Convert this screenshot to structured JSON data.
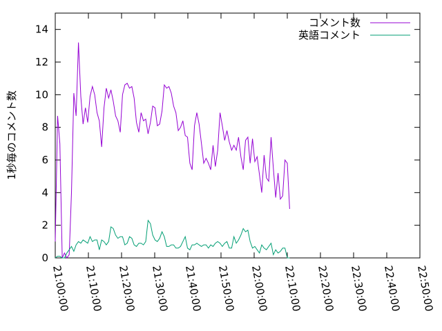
{
  "chart_data": {
    "type": "line",
    "title": "",
    "xlabel": "",
    "ylabel": "1秒毎のコメント数",
    "xlim": [
      "21:00:00",
      "22:50:00"
    ],
    "ylim": [
      0,
      15
    ],
    "x_ticks": [
      "21:00:00",
      "21:10:00",
      "21:20:00",
      "21:30:00",
      "21:40:00",
      "21:50:00",
      "22:00:00",
      "22:10:00",
      "22:20:00",
      "22:30:00",
      "22:40:00",
      "22:50:00"
    ],
    "y_ticks": [
      0,
      2,
      4,
      6,
      8,
      10,
      12,
      14
    ],
    "grid": false,
    "legend": "top-right",
    "series": [
      {
        "name": "コメント数",
        "color": "#9400d3",
        "points": [
          [
            "21:00:00",
            1.0
          ],
          [
            "21:00:42",
            8.7
          ],
          [
            "21:01:24",
            7.0
          ],
          [
            "21:02:06",
            0.0
          ],
          [
            "21:02:48",
            0.3
          ],
          [
            "21:03:30",
            0.0
          ],
          [
            "21:04:12",
            0.2
          ],
          [
            "21:04:54",
            4.0
          ],
          [
            "21:05:36",
            10.1
          ],
          [
            "21:06:18",
            8.7
          ],
          [
            "21:07:00",
            13.2
          ],
          [
            "21:07:42",
            9.9
          ],
          [
            "21:08:24",
            8.2
          ],
          [
            "21:09:06",
            9.2
          ],
          [
            "21:09:48",
            8.3
          ],
          [
            "21:10:30",
            9.9
          ],
          [
            "21:11:12",
            10.5
          ],
          [
            "21:11:54",
            10.0
          ],
          [
            "21:12:36",
            8.9
          ],
          [
            "21:13:18",
            8.4
          ],
          [
            "21:14:00",
            6.8
          ],
          [
            "21:14:42",
            9.2
          ],
          [
            "21:15:24",
            10.4
          ],
          [
            "21:16:06",
            9.8
          ],
          [
            "21:16:48",
            10.3
          ],
          [
            "21:17:30",
            9.6
          ],
          [
            "21:18:12",
            8.7
          ],
          [
            "21:18:54",
            8.4
          ],
          [
            "21:19:36",
            7.7
          ],
          [
            "21:20:18",
            10.0
          ],
          [
            "21:21:00",
            10.6
          ],
          [
            "21:21:42",
            10.7
          ],
          [
            "21:22:24",
            10.4
          ],
          [
            "21:23:06",
            10.5
          ],
          [
            "21:23:48",
            9.8
          ],
          [
            "21:24:30",
            8.3
          ],
          [
            "21:25:12",
            7.7
          ],
          [
            "21:25:54",
            8.9
          ],
          [
            "21:26:36",
            8.4
          ],
          [
            "21:27:18",
            8.5
          ],
          [
            "21:28:00",
            7.6
          ],
          [
            "21:28:42",
            8.3
          ],
          [
            "21:29:24",
            9.3
          ],
          [
            "21:30:06",
            9.2
          ],
          [
            "21:30:48",
            8.1
          ],
          [
            "21:31:30",
            8.2
          ],
          [
            "21:32:12",
            9.0
          ],
          [
            "21:32:54",
            10.6
          ],
          [
            "21:33:36",
            10.4
          ],
          [
            "21:34:18",
            10.5
          ],
          [
            "21:35:00",
            10.1
          ],
          [
            "21:35:42",
            9.3
          ],
          [
            "21:36:24",
            8.9
          ],
          [
            "21:37:06",
            7.8
          ],
          [
            "21:37:48",
            8.0
          ],
          [
            "21:38:30",
            8.4
          ],
          [
            "21:39:12",
            7.5
          ],
          [
            "21:39:54",
            7.4
          ],
          [
            "21:40:36",
            5.8
          ],
          [
            "21:41:18",
            5.4
          ],
          [
            "21:42:00",
            8.1
          ],
          [
            "21:42:42",
            8.9
          ],
          [
            "21:43:24",
            8.2
          ],
          [
            "21:44:06",
            7.0
          ],
          [
            "21:44:48",
            5.8
          ],
          [
            "21:45:30",
            6.1
          ],
          [
            "21:46:12",
            5.8
          ],
          [
            "21:46:54",
            5.4
          ],
          [
            "21:47:36",
            6.9
          ],
          [
            "21:48:18",
            5.6
          ],
          [
            "21:49:00",
            6.6
          ],
          [
            "21:49:42",
            8.9
          ],
          [
            "21:50:24",
            8.1
          ],
          [
            "21:51:06",
            7.2
          ],
          [
            "21:51:48",
            7.8
          ],
          [
            "21:52:30",
            7.1
          ],
          [
            "21:53:12",
            6.6
          ],
          [
            "21:53:54",
            6.9
          ],
          [
            "21:54:36",
            6.6
          ],
          [
            "21:55:18",
            7.4
          ],
          [
            "21:56:00",
            6.2
          ],
          [
            "21:56:42",
            5.4
          ],
          [
            "21:57:24",
            7.2
          ],
          [
            "21:58:06",
            7.4
          ],
          [
            "21:58:48",
            5.8
          ],
          [
            "21:59:30",
            7.3
          ],
          [
            "22:00:12",
            5.9
          ],
          [
            "22:00:54",
            6.2
          ],
          [
            "22:01:36",
            5.1
          ],
          [
            "22:02:18",
            4.0
          ],
          [
            "22:03:00",
            6.3
          ],
          [
            "22:03:42",
            4.9
          ],
          [
            "22:04:24",
            4.7
          ],
          [
            "22:05:06",
            7.4
          ],
          [
            "22:05:48",
            5.5
          ],
          [
            "22:06:30",
            3.7
          ],
          [
            "22:07:12",
            5.2
          ],
          [
            "22:07:54",
            3.6
          ],
          [
            "22:08:36",
            3.8
          ],
          [
            "22:09:18",
            6.0
          ],
          [
            "22:10:00",
            5.8
          ],
          [
            "22:10:42",
            3.0
          ]
        ]
      },
      {
        "name": "英語コメント",
        "color": "#009e73",
        "points": [
          [
            "21:00:00",
            0.0
          ],
          [
            "21:00:42",
            0.1
          ],
          [
            "21:01:24",
            0.1
          ],
          [
            "21:02:06",
            0.0
          ],
          [
            "21:02:48",
            0.0
          ],
          [
            "21:03:30",
            0.3
          ],
          [
            "21:04:12",
            0.5
          ],
          [
            "21:04:54",
            0.7
          ],
          [
            "21:05:36",
            0.4
          ],
          [
            "21:06:18",
            0.8
          ],
          [
            "21:07:00",
            1.0
          ],
          [
            "21:07:42",
            0.9
          ],
          [
            "21:08:24",
            1.1
          ],
          [
            "21:09:06",
            1.0
          ],
          [
            "21:09:48",
            0.9
          ],
          [
            "21:10:30",
            1.3
          ],
          [
            "21:11:12",
            1.0
          ],
          [
            "21:11:54",
            1.1
          ],
          [
            "21:12:36",
            1.1
          ],
          [
            "21:13:18",
            0.5
          ],
          [
            "21:14:00",
            1.1
          ],
          [
            "21:14:42",
            1.0
          ],
          [
            "21:15:24",
            0.8
          ],
          [
            "21:16:06",
            1.0
          ],
          [
            "21:16:48",
            1.9
          ],
          [
            "21:17:30",
            1.8
          ],
          [
            "21:18:12",
            1.4
          ],
          [
            "21:18:54",
            1.2
          ],
          [
            "21:19:36",
            1.3
          ],
          [
            "21:20:18",
            1.3
          ],
          [
            "21:21:00",
            0.8
          ],
          [
            "21:21:42",
            0.9
          ],
          [
            "21:22:24",
            1.3
          ],
          [
            "21:23:06",
            1.2
          ],
          [
            "21:23:48",
            0.8
          ],
          [
            "21:24:30",
            0.7
          ],
          [
            "21:25:12",
            0.9
          ],
          [
            "21:25:54",
            0.9
          ],
          [
            "21:26:36",
            0.8
          ],
          [
            "21:27:18",
            1.0
          ],
          [
            "21:28:00",
            2.3
          ],
          [
            "21:28:42",
            2.1
          ],
          [
            "21:29:24",
            1.4
          ],
          [
            "21:30:06",
            1.1
          ],
          [
            "21:30:48",
            1.0
          ],
          [
            "21:31:30",
            1.2
          ],
          [
            "21:32:12",
            1.6
          ],
          [
            "21:32:54",
            1.3
          ],
          [
            "21:33:36",
            0.7
          ],
          [
            "21:34:18",
            0.7
          ],
          [
            "21:35:00",
            0.8
          ],
          [
            "21:35:42",
            0.8
          ],
          [
            "21:36:24",
            0.6
          ],
          [
            "21:37:06",
            0.6
          ],
          [
            "21:37:48",
            0.7
          ],
          [
            "21:38:30",
            1.0
          ],
          [
            "21:39:12",
            1.3
          ],
          [
            "21:39:54",
            0.6
          ],
          [
            "21:40:36",
            0.5
          ],
          [
            "21:41:18",
            0.8
          ],
          [
            "21:42:00",
            0.8
          ],
          [
            "21:42:42",
            0.9
          ],
          [
            "21:43:24",
            0.8
          ],
          [
            "21:44:06",
            0.7
          ],
          [
            "21:44:48",
            0.8
          ],
          [
            "21:45:30",
            0.8
          ],
          [
            "21:46:12",
            0.6
          ],
          [
            "21:46:54",
            0.8
          ],
          [
            "21:47:36",
            0.7
          ],
          [
            "21:48:18",
            0.9
          ],
          [
            "21:49:00",
            1.0
          ],
          [
            "21:49:42",
            0.9
          ],
          [
            "21:50:24",
            0.7
          ],
          [
            "21:51:06",
            0.9
          ],
          [
            "21:51:48",
            1.0
          ],
          [
            "21:52:30",
            0.6
          ],
          [
            "21:53:12",
            0.6
          ],
          [
            "21:53:54",
            1.3
          ],
          [
            "21:54:36",
            0.9
          ],
          [
            "21:55:18",
            1.1
          ],
          [
            "21:56:00",
            1.4
          ],
          [
            "21:56:42",
            1.8
          ],
          [
            "21:57:24",
            1.6
          ],
          [
            "21:58:06",
            1.7
          ],
          [
            "21:58:48",
            1.0
          ],
          [
            "21:59:30",
            0.6
          ],
          [
            "22:00:12",
            0.7
          ],
          [
            "22:00:54",
            0.5
          ],
          [
            "22:01:36",
            0.3
          ],
          [
            "22:02:18",
            0.8
          ],
          [
            "22:03:00",
            0.6
          ],
          [
            "22:03:42",
            0.5
          ],
          [
            "22:04:24",
            0.7
          ],
          [
            "22:05:06",
            0.9
          ],
          [
            "22:05:48",
            0.2
          ],
          [
            "22:06:30",
            0.5
          ],
          [
            "22:07:12",
            0.3
          ],
          [
            "22:07:54",
            0.4
          ],
          [
            "22:08:36",
            0.6
          ],
          [
            "22:09:18",
            0.6
          ],
          [
            "22:10:00",
            0.0
          ],
          [
            "22:10:42",
            0.0
          ]
        ]
      }
    ]
  }
}
